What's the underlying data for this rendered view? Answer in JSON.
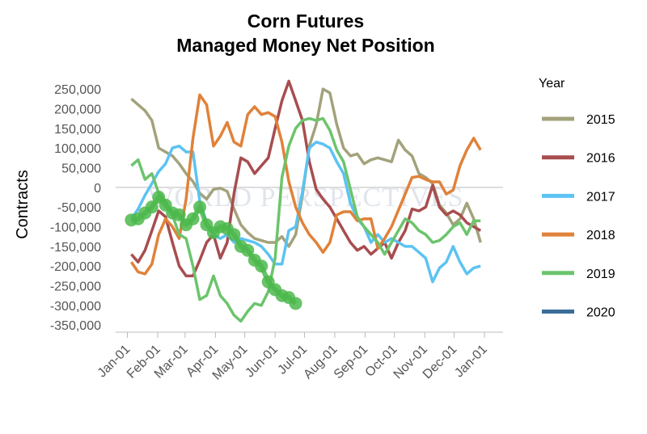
{
  "chart_data": {
    "type": "line",
    "title": [
      "Corn Futures",
      "Managed Money Net Position"
    ],
    "y_label": "Contracts",
    "legend_title": "Year",
    "legend_position": "right",
    "watermark": "WORLD PERSPECTIVES",
    "zero_line": true,
    "x": [
      4,
      11,
      18,
      25,
      32,
      39,
      46,
      53,
      60,
      67,
      74,
      81,
      88,
      95,
      102,
      109,
      116,
      123,
      130,
      137,
      144,
      151,
      158,
      165,
      172,
      179,
      186,
      193,
      200,
      207,
      214,
      221,
      228,
      235,
      242,
      249,
      256,
      263,
      270,
      277,
      284,
      291,
      298,
      305,
      312,
      319,
      326,
      333,
      340,
      347,
      354,
      361
    ],
    "xlim": [
      -12,
      384
    ],
    "xticks": [
      {
        "value": 0,
        "label": "Jan-01"
      },
      {
        "value": 31,
        "label": "Feb-01"
      },
      {
        "value": 59,
        "label": "Mar-01"
      },
      {
        "value": 90,
        "label": "Apr-01"
      },
      {
        "value": 120,
        "label": "May-01"
      },
      {
        "value": 151,
        "label": "Jun-01"
      },
      {
        "value": 181,
        "label": "Jul-01"
      },
      {
        "value": 212,
        "label": "Aug-01"
      },
      {
        "value": 243,
        "label": "Sep-01"
      },
      {
        "value": 273,
        "label": "Oct-01"
      },
      {
        "value": 304,
        "label": "Nov-01"
      },
      {
        "value": 334,
        "label": "Dec-01"
      },
      {
        "value": 365,
        "label": "Jan-01"
      }
    ],
    "ylim": [
      -368000,
      281000
    ],
    "yticks": [
      {
        "value": -350000,
        "label": "-350,000"
      },
      {
        "value": -300000,
        "label": "-300,000"
      },
      {
        "value": -250000,
        "label": "-250,000"
      },
      {
        "value": -200000,
        "label": "-200,000"
      },
      {
        "value": -150000,
        "label": "-150,000"
      },
      {
        "value": -100000,
        "label": "-100,000"
      },
      {
        "value": -50000,
        "label": "-50,000"
      },
      0,
      {
        "value": 50000,
        "label": "50,000"
      },
      {
        "value": 100000,
        "label": "100,000"
      },
      {
        "value": 150000,
        "label": "150,000"
      },
      {
        "value": 200000,
        "label": "200,000"
      },
      {
        "value": 250000,
        "label": "250,000"
      }
    ],
    "series": [
      {
        "name": "2015",
        "color": "#a3a27c",
        "values": [
          225000,
          210000,
          195000,
          170000,
          100000,
          90000,
          80000,
          60000,
          35000,
          15000,
          -15000,
          -30000,
          -5000,
          -2000,
          -10000,
          -55000,
          -95000,
          -115000,
          -130000,
          -135000,
          -140000,
          -140000,
          -125000,
          -150000,
          -120000,
          -20000,
          105000,
          160000,
          250000,
          240000,
          160000,
          100000,
          80000,
          85000,
          60000,
          70000,
          75000,
          70000,
          65000,
          120000,
          95000,
          80000,
          35000,
          25000,
          10000,
          -45000,
          -65000,
          -95000,
          -80000,
          -40000,
          -80000,
          -140000
        ]
      },
      {
        "name": "2016",
        "color": "#a84d4f",
        "values": [
          -170000,
          -190000,
          -160000,
          -110000,
          -60000,
          -75000,
          -140000,
          -200000,
          -225000,
          -225000,
          -185000,
          -140000,
          -120000,
          -180000,
          -140000,
          -15000,
          75000,
          65000,
          35000,
          55000,
          75000,
          150000,
          220000,
          270000,
          220000,
          170000,
          65000,
          -5000,
          -30000,
          -50000,
          -80000,
          -110000,
          -140000,
          -160000,
          -150000,
          -170000,
          -155000,
          -140000,
          -180000,
          -140000,
          -110000,
          -55000,
          -60000,
          -50000,
          5000,
          -50000,
          -70000,
          -60000,
          -70000,
          -90000,
          -100000,
          -110000
        ]
      },
      {
        "name": "2017",
        "color": "#5cc3f2",
        "values": [
          -80000,
          -55000,
          -20000,
          10000,
          40000,
          60000,
          100000,
          105000,
          90000,
          90000,
          -35000,
          -90000,
          -120000,
          -130000,
          -120000,
          -140000,
          -130000,
          -135000,
          -140000,
          -150000,
          -170000,
          -195000,
          -195000,
          -110000,
          -100000,
          -10000,
          100000,
          115000,
          110000,
          100000,
          65000,
          35000,
          -40000,
          -80000,
          -100000,
          -140000,
          -120000,
          -140000,
          -130000,
          -140000,
          -150000,
          -150000,
          -165000,
          -180000,
          -240000,
          -205000,
          -190000,
          -150000,
          -190000,
          -220000,
          -205000,
          -200000
        ]
      },
      {
        "name": "2018",
        "color": "#e0823a",
        "values": [
          -190000,
          -215000,
          -220000,
          -195000,
          -120000,
          -80000,
          -100000,
          -130000,
          -30000,
          125000,
          235000,
          210000,
          105000,
          130000,
          165000,
          115000,
          105000,
          185000,
          205000,
          185000,
          190000,
          180000,
          115000,
          15000,
          -50000,
          -90000,
          -120000,
          -140000,
          -165000,
          -140000,
          -70000,
          -62000,
          -62000,
          -85000,
          -80000,
          -80000,
          -155000,
          -130000,
          -100000,
          -58000,
          -17000,
          25000,
          28000,
          20000,
          14000,
          14000,
          -17000,
          -7000,
          55000,
          95000,
          125000,
          95000
        ]
      },
      {
        "name": "2019",
        "color": "#6cc46c",
        "values": [
          55000,
          70000,
          20000,
          35000,
          -15000,
          -35000,
          -70000,
          -120000,
          -130000,
          -200000,
          -285000,
          -275000,
          -225000,
          -275000,
          -295000,
          -325000,
          -340000,
          -315000,
          -295000,
          -300000,
          -265000,
          -180000,
          25000,
          105000,
          150000,
          170000,
          175000,
          170000,
          175000,
          145000,
          95000,
          65000,
          -5000,
          -75000,
          -100000,
          -120000,
          -140000,
          -170000,
          -140000,
          -110000,
          -80000,
          -90000,
          -110000,
          -120000,
          -140000,
          -135000,
          -120000,
          -100000,
          -90000,
          -120000,
          -85000,
          -85000
        ]
      },
      {
        "name": "2020",
        "color": "#3a6e98",
        "line_color": "#4cb84c",
        "markers": true,
        "values": [
          -83000,
          -80000,
          -65000,
          -50000,
          -25000,
          -45000,
          -65000,
          -70000,
          -95000,
          -80000,
          -50000,
          -95000,
          -115000,
          -100000,
          -105000,
          -120000,
          -150000,
          -160000,
          -185000,
          -200000,
          -240000,
          -260000,
          -275000,
          -280000,
          -295000,
          null,
          null,
          null,
          null,
          null,
          null,
          null,
          null,
          null,
          null,
          null,
          null,
          null,
          null,
          null,
          null,
          null,
          null,
          null,
          null,
          null,
          null,
          null,
          null,
          null,
          null,
          null
        ]
      }
    ]
  }
}
